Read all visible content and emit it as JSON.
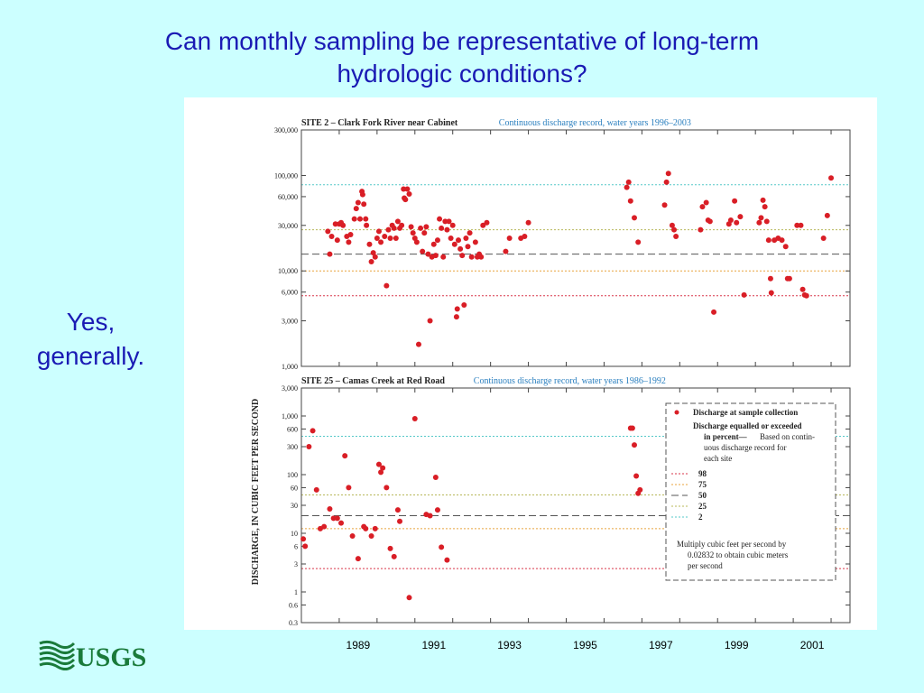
{
  "slide": {
    "title_lines": [
      "Can monthly sampling be representative of long-term",
      "hydrologic conditions?"
    ],
    "answer_lines": [
      "Yes,",
      "generally."
    ],
    "logo_text": "USGS"
  },
  "colors": {
    "background": "#ccffff",
    "title": "#1a1ab4",
    "points": "#d91e26",
    "p98": "#d9364a",
    "p75": "#e8a33d",
    "p50": "#555555",
    "p25": "#b8b85a",
    "p2": "#55c8c8"
  },
  "figure": {
    "ylabel": "DISCHARGE, IN CUBIC FEET PER SECOND",
    "x_ticks": [
      "1989",
      "1991",
      "1993",
      "1995",
      "1997",
      "1999",
      "2001"
    ],
    "legend": {
      "points_label": "Discharge at sample collection",
      "header_lines": [
        "Discharge equalled or exceeded",
        "in percent",
        "Based on contin-",
        "uous discharge record for",
        "each site"
      ],
      "entries": [
        "98",
        "75",
        "50",
        "25",
        "2"
      ],
      "note_lines": [
        "Multiply cubic feet per second by",
        "0.02832 to obtain cubic meters",
        "per second"
      ]
    }
  },
  "chart_data": [
    {
      "type": "scatter",
      "title": "SITE 2 – Clark Fork River near Cabinet",
      "subtitle": "Continuous discharge record, water years 1996–2003",
      "scale": "log",
      "ylim": [
        1000,
        300000
      ],
      "xlim": [
        1988,
        2002.5
      ],
      "y_ticks": [
        1000,
        3000,
        6000,
        10000,
        30000,
        60000,
        100000,
        300000
      ],
      "y_tick_labels": [
        "1,000",
        "3,000",
        "6,000",
        "10,000",
        "30,000",
        "60,000",
        "100,000",
        "300,000"
      ],
      "percentiles": [
        {
          "p": "2",
          "value": 80000
        },
        {
          "p": "25",
          "value": 27000
        },
        {
          "p": "50",
          "value": 15000
        },
        {
          "p": "75",
          "value": 10000
        },
        {
          "p": "98",
          "value": 5500
        }
      ],
      "points": [
        [
          1988.7,
          26000
        ],
        [
          1988.75,
          15000
        ],
        [
          1988.8,
          23000
        ],
        [
          1988.9,
          31000
        ],
        [
          1988.95,
          21000
        ],
        [
          1989.0,
          31000
        ],
        [
          1989.05,
          32000
        ],
        [
          1989.1,
          30000
        ],
        [
          1989.2,
          23000
        ],
        [
          1989.25,
          20000
        ],
        [
          1989.3,
          24000
        ],
        [
          1989.4,
          35000
        ],
        [
          1989.45,
          45000
        ],
        [
          1989.5,
          52000
        ],
        [
          1989.55,
          35000
        ],
        [
          1989.6,
          68000
        ],
        [
          1989.62,
          63000
        ],
        [
          1989.65,
          50000
        ],
        [
          1989.7,
          35000
        ],
        [
          1989.72,
          30000
        ],
        [
          1989.8,
          19000
        ],
        [
          1989.85,
          12500
        ],
        [
          1989.9,
          15500
        ],
        [
          1989.95,
          14000
        ],
        [
          1990.0,
          22000
        ],
        [
          1990.05,
          26000
        ],
        [
          1990.1,
          20000
        ],
        [
          1990.2,
          23000
        ],
        [
          1990.25,
          7000
        ],
        [
          1990.3,
          27000
        ],
        [
          1990.35,
          22000
        ],
        [
          1990.4,
          30000
        ],
        [
          1990.45,
          28000
        ],
        [
          1990.5,
          22000
        ],
        [
          1990.55,
          33000
        ],
        [
          1990.6,
          28000
        ],
        [
          1990.65,
          30000
        ],
        [
          1990.7,
          72000
        ],
        [
          1990.72,
          58000
        ],
        [
          1990.75,
          56000
        ],
        [
          1990.8,
          72000
        ],
        [
          1990.85,
          64000
        ],
        [
          1990.9,
          29000
        ],
        [
          1990.95,
          25000
        ],
        [
          1991.0,
          22000
        ],
        [
          1991.05,
          20000
        ],
        [
          1991.1,
          1700
        ],
        [
          1991.15,
          28000
        ],
        [
          1991.2,
          16000
        ],
        [
          1991.25,
          25000
        ],
        [
          1991.3,
          29000
        ],
        [
          1991.35,
          15000
        ],
        [
          1991.4,
          3000
        ],
        [
          1991.45,
          14000
        ],
        [
          1991.5,
          19000
        ],
        [
          1991.55,
          14500
        ],
        [
          1991.6,
          21000
        ],
        [
          1991.65,
          35000
        ],
        [
          1991.7,
          28000
        ],
        [
          1991.75,
          14000
        ],
        [
          1991.8,
          33000
        ],
        [
          1991.85,
          27000
        ],
        [
          1991.9,
          33000
        ],
        [
          1991.95,
          22000
        ],
        [
          1992.0,
          30000
        ],
        [
          1992.05,
          19000
        ],
        [
          1992.1,
          3300
        ],
        [
          1992.12,
          4000
        ],
        [
          1992.15,
          21000
        ],
        [
          1992.2,
          17000
        ],
        [
          1992.25,
          14500
        ],
        [
          1992.3,
          4400
        ],
        [
          1992.35,
          22000
        ],
        [
          1992.4,
          18000
        ],
        [
          1992.45,
          25000
        ],
        [
          1992.5,
          14000
        ],
        [
          1992.6,
          20000
        ],
        [
          1992.65,
          14000
        ],
        [
          1992.7,
          15000
        ],
        [
          1992.75,
          14000
        ],
        [
          1992.8,
          30000
        ],
        [
          1992.9,
          32000
        ],
        [
          1993.4,
          16000
        ],
        [
          1993.5,
          22000
        ],
        [
          1993.8,
          22000
        ],
        [
          1993.9,
          23000
        ],
        [
          1994.0,
          32000
        ],
        [
          1996.6,
          75000
        ],
        [
          1996.65,
          85000
        ],
        [
          1996.7,
          54000
        ],
        [
          1996.8,
          36000
        ],
        [
          1996.9,
          20000
        ],
        [
          1997.6,
          49000
        ],
        [
          1997.65,
          85000
        ],
        [
          1997.7,
          105000
        ],
        [
          1997.8,
          30000
        ],
        [
          1997.85,
          27000
        ],
        [
          1997.9,
          23000
        ],
        [
          1998.55,
          27000
        ],
        [
          1998.6,
          47000
        ],
        [
          1998.7,
          52000
        ],
        [
          1998.75,
          34000
        ],
        [
          1998.8,
          33000
        ],
        [
          1998.9,
          3700
        ],
        [
          1999.3,
          31000
        ],
        [
          1999.35,
          34000
        ],
        [
          1999.45,
          54000
        ],
        [
          1999.5,
          32000
        ],
        [
          1999.6,
          37000
        ],
        [
          1999.7,
          5600
        ],
        [
          2000.1,
          32000
        ],
        [
          2000.15,
          36000
        ],
        [
          2000.2,
          55000
        ],
        [
          2000.25,
          47000
        ],
        [
          2000.3,
          33000
        ],
        [
          2000.35,
          21000
        ],
        [
          2000.4,
          8300
        ],
        [
          2000.42,
          5900
        ],
        [
          2000.5,
          21000
        ],
        [
          2000.6,
          22000
        ],
        [
          2000.7,
          21000
        ],
        [
          2000.8,
          18000
        ],
        [
          2000.85,
          8300
        ],
        [
          2000.9,
          8300
        ],
        [
          2001.1,
          30000
        ],
        [
          2001.2,
          30000
        ],
        [
          2001.25,
          6400
        ],
        [
          2001.3,
          5600
        ],
        [
          2001.35,
          5500
        ],
        [
          2001.8,
          22000
        ],
        [
          2001.9,
          38000
        ],
        [
          2002.0,
          94000
        ]
      ]
    },
    {
      "type": "scatter",
      "title": "SITE 25 – Camas Creek at Red Road",
      "subtitle": "Continuous discharge record, water years 1986–1992",
      "scale": "log",
      "ylim": [
        0.3,
        3000
      ],
      "xlim": [
        1988,
        2002.5
      ],
      "y_ticks": [
        0.3,
        0.6,
        1,
        3,
        6,
        10,
        30,
        60,
        100,
        300,
        600,
        1000,
        3000
      ],
      "y_tick_labels": [
        "0.3",
        "0.6",
        "1",
        "3",
        "6",
        "10",
        "30",
        "60",
        "100",
        "300",
        "600",
        "1,000",
        "3,000"
      ],
      "percentiles": [
        {
          "p": "2",
          "value": 450
        },
        {
          "p": "25",
          "value": 45
        },
        {
          "p": "50",
          "value": 20
        },
        {
          "p": "75",
          "value": 12
        },
        {
          "p": "98",
          "value": 2.5
        }
      ],
      "points": [
        [
          1988.05,
          8
        ],
        [
          1988.1,
          6
        ],
        [
          1988.2,
          300
        ],
        [
          1988.3,
          560
        ],
        [
          1988.4,
          55
        ],
        [
          1988.5,
          12
        ],
        [
          1988.6,
          13
        ],
        [
          1988.75,
          26
        ],
        [
          1988.85,
          18
        ],
        [
          1988.95,
          18
        ],
        [
          1989.05,
          15
        ],
        [
          1989.15,
          210
        ],
        [
          1989.25,
          60
        ],
        [
          1989.35,
          9
        ],
        [
          1989.5,
          3.7
        ],
        [
          1989.65,
          13
        ],
        [
          1989.7,
          12
        ],
        [
          1989.85,
          9
        ],
        [
          1989.95,
          12
        ],
        [
          1990.05,
          150
        ],
        [
          1990.1,
          110
        ],
        [
          1990.15,
          130
        ],
        [
          1990.25,
          60
        ],
        [
          1990.35,
          5.5
        ],
        [
          1990.45,
          4
        ],
        [
          1990.55,
          25
        ],
        [
          1990.6,
          16
        ],
        [
          1990.85,
          0.8
        ],
        [
          1991.0,
          900
        ],
        [
          1991.3,
          21
        ],
        [
          1991.4,
          20
        ],
        [
          1991.55,
          90
        ],
        [
          1991.7,
          5.8
        ],
        [
          1991.85,
          3.5
        ],
        [
          1991.6,
          25
        ],
        [
          1996.7,
          620
        ],
        [
          1996.75,
          620
        ],
        [
          1996.8,
          320
        ],
        [
          1996.85,
          95
        ],
        [
          1996.9,
          48
        ],
        [
          1996.95,
          55
        ]
      ]
    }
  ]
}
